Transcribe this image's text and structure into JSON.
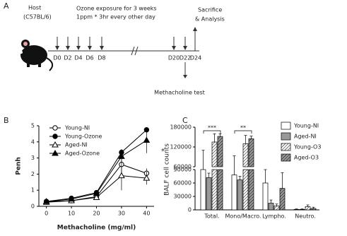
{
  "diagram": {
    "panel": "A",
    "host": "Host",
    "strain": "(C57BL/6)",
    "exposure": "Ozone exposure for 3 weeks",
    "dose": "1ppm * 3hr every other day",
    "end_1": "Sacrifice",
    "end_2": "& Analysis",
    "days": [
      "D0",
      "D2",
      "D4",
      "D6",
      "D8",
      "D20",
      "D22",
      "D24"
    ],
    "test": "Methacholine test"
  },
  "chart_data": [
    {
      "type": "line",
      "panel": "B",
      "x_label": "Methacholine (mg/ml)",
      "y_label": "Penh",
      "annotation": "*",
      "x": [
        0,
        10,
        20,
        30,
        40
      ],
      "xlim": [
        -3,
        43
      ],
      "xticks": [
        0,
        10,
        20,
        30,
        40
      ],
      "ylim": [
        0,
        5
      ],
      "yticks": [
        0,
        1,
        2,
        3,
        4,
        5
      ],
      "legend": "upper-left",
      "series": [
        {
          "name": "Young-NI",
          "color": "#000000",
          "marker": "circle",
          "filled": false,
          "values": [
            0.3,
            0.35,
            0.6,
            2.6,
            2.05
          ],
          "errors": [
            0.05,
            0.05,
            0.1,
            0.7,
            0.3
          ]
        },
        {
          "name": "Young-Ozone",
          "color": "#000000",
          "marker": "circle",
          "filled": true,
          "values": [
            0.3,
            0.5,
            0.85,
            3.35,
            4.75
          ],
          "errors": [
            0.05,
            0.1,
            0.1,
            0.2,
            0.1
          ]
        },
        {
          "name": "Aged-NI",
          "color": "#000000",
          "marker": "triangle",
          "filled": false,
          "values": [
            0.25,
            0.35,
            0.55,
            1.9,
            1.75
          ],
          "errors": [
            0.05,
            0.05,
            0.1,
            0.9,
            0.4
          ]
        },
        {
          "name": "Aged-Ozone",
          "color": "#000000",
          "marker": "triangle",
          "filled": true,
          "values": [
            0.3,
            0.45,
            0.8,
            3.1,
            4.1
          ],
          "errors": [
            0.05,
            0.1,
            0.15,
            0.3,
            0.8
          ]
        }
      ]
    },
    {
      "type": "bar",
      "panel": "C",
      "y_label": "BALF cell counts",
      "categories": [
        "Total.",
        "Mono/Macro.",
        "Lympho.",
        "Neutro."
      ],
      "ylim_lower": [
        0,
        90000
      ],
      "yticks_lower": [
        0,
        30000,
        60000,
        90000
      ],
      "ylim_upper": [
        60000,
        180000
      ],
      "yticks_upper": [
        60000,
        120000,
        180000
      ],
      "legend": "upper-right",
      "series": [
        {
          "name": "Young-NI",
          "color": "#ffffff",
          "hatch": false,
          "values": [
            90000,
            78000,
            60000,
            1000
          ],
          "errors": [
            20000,
            15000,
            30000,
            1000
          ]
        },
        {
          "name": "Aged-NI",
          "color": "#999999",
          "hatch": false,
          "values": [
            72000,
            67000,
            15000,
            1000
          ],
          "errors": [
            10000,
            8000,
            7000,
            1000
          ]
        },
        {
          "name": "Young-O3",
          "color": "#ffffff",
          "hatch": true,
          "values": [
            135000,
            130000,
            9000,
            7000
          ],
          "errors": [
            25000,
            25000,
            4000,
            4000
          ]
        },
        {
          "name": "Aged-O3",
          "color": "#999999",
          "hatch": true,
          "values": [
            152000,
            145000,
            48000,
            3000
          ],
          "errors": [
            8000,
            8000,
            35000,
            3000
          ]
        }
      ],
      "significance": [
        {
          "category": "Total.",
          "label": "***"
        },
        {
          "category": "Mono/Macro.",
          "label": "**"
        }
      ]
    }
  ]
}
